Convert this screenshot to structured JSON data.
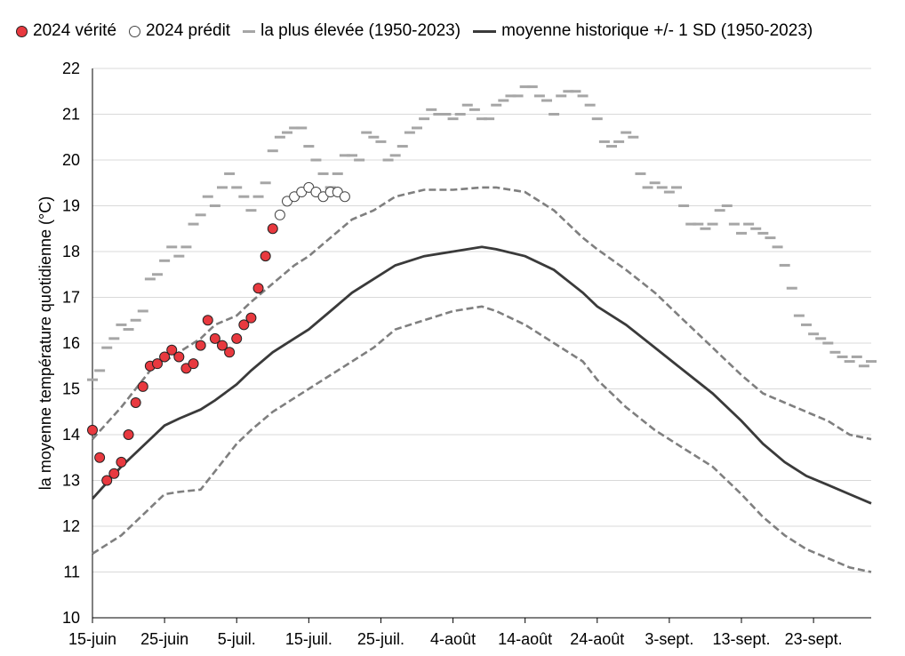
{
  "legend": {
    "truth": "2024 vérité",
    "predicted": "2024 prédit",
    "highest": "la plus élevée (1950-2023)",
    "mean": "moyenne historique +/- 1 SD (1950-2023)"
  },
  "chart_data": {
    "type": "line",
    "title": "",
    "xlabel": "",
    "ylabel": "la moyenne température quotidienne (°C)",
    "ylim": [
      10,
      22
    ],
    "yticks": [
      10,
      11,
      12,
      13,
      14,
      15,
      16,
      17,
      18,
      19,
      20,
      21,
      22
    ],
    "x_tick_labels": [
      "15-juin",
      "25-juin",
      "5-juil.",
      "15-juil.",
      "25-juil.",
      "4-août",
      "14-août",
      "24-août",
      "3-sept.",
      "13-sept.",
      "23-sept."
    ],
    "x_start": "15-juin",
    "x_range_days": [
      0,
      108
    ],
    "grid": "horizontal",
    "legend_position": "top",
    "colors": {
      "truth": "#e8393f",
      "predicted": "#ffffff",
      "highest": "#a6a6a6",
      "mean": "#3a3a3a",
      "sd": "#7f7f7f"
    },
    "series": [
      {
        "name": "2024 vérité",
        "style": "filled-dot",
        "x": [
          0,
          1,
          2,
          3,
          4,
          5,
          6,
          7,
          8,
          9,
          10,
          11,
          12,
          13,
          14,
          15,
          16,
          17,
          18,
          19,
          20,
          21,
          22,
          23,
          24,
          25
        ],
        "values": [
          14.1,
          13.5,
          13.0,
          13.15,
          13.4,
          14.0,
          14.7,
          15.05,
          15.5,
          15.55,
          15.7,
          15.85,
          15.7,
          15.45,
          15.55,
          15.95,
          16.5,
          16.1,
          15.95,
          15.8,
          16.1,
          16.4,
          16.55,
          17.2,
          17.9,
          18.5
        ]
      },
      {
        "name": "2024 prédit",
        "style": "open-dot",
        "x": [
          26,
          27,
          28,
          29,
          30,
          31,
          32,
          33,
          34,
          35
        ],
        "values": [
          18.8,
          19.1,
          19.2,
          19.3,
          19.4,
          19.3,
          19.2,
          19.3,
          19.3,
          19.2
        ]
      },
      {
        "name": "la plus élevée (1950-2023)",
        "style": "dash-marker",
        "x": [
          0,
          1,
          2,
          3,
          4,
          5,
          6,
          7,
          8,
          9,
          10,
          11,
          12,
          13,
          14,
          15,
          16,
          17,
          18,
          19,
          20,
          21,
          22,
          23,
          24,
          25,
          26,
          27,
          28,
          29,
          30,
          31,
          32,
          33,
          34,
          35,
          36,
          37,
          38,
          39,
          40,
          41,
          42,
          43,
          44,
          45,
          46,
          47,
          48,
          49,
          50,
          51,
          52,
          53,
          54,
          55,
          56,
          57,
          58,
          59,
          60,
          61,
          62,
          63,
          64,
          65,
          66,
          67,
          68,
          69,
          70,
          71,
          72,
          73,
          74,
          75,
          76,
          77,
          78,
          79,
          80,
          81,
          82,
          83,
          84,
          85,
          86,
          87,
          88,
          89,
          90,
          91,
          92,
          93,
          94,
          95,
          96,
          97,
          98,
          99,
          100,
          101,
          102,
          103,
          104,
          105,
          106,
          107,
          108
        ],
        "values": [
          15.2,
          15.4,
          15.9,
          16.1,
          16.4,
          16.3,
          16.5,
          16.7,
          17.4,
          17.5,
          17.8,
          18.1,
          17.9,
          18.1,
          18.6,
          18.8,
          19.2,
          19.0,
          19.4,
          19.7,
          19.4,
          19.2,
          18.9,
          19.2,
          19.5,
          20.2,
          20.5,
          20.6,
          20.7,
          20.7,
          20.3,
          20.0,
          19.7,
          19.4,
          19.7,
          20.1,
          20.1,
          20.0,
          20.6,
          20.5,
          20.4,
          20.0,
          20.1,
          20.3,
          20.6,
          20.7,
          20.9,
          21.1,
          21.0,
          21.0,
          20.9,
          21.0,
          21.2,
          21.1,
          20.9,
          20.9,
          21.2,
          21.3,
          21.4,
          21.4,
          21.6,
          21.6,
          21.4,
          21.3,
          21.0,
          21.4,
          21.5,
          21.5,
          21.4,
          21.2,
          20.9,
          20.4,
          20.3,
          20.4,
          20.6,
          20.5,
          19.7,
          19.4,
          19.5,
          19.4,
          19.3,
          19.4,
          19.0,
          18.6,
          18.6,
          18.5,
          18.6,
          18.9,
          19.0,
          18.6,
          18.4,
          18.6,
          18.5,
          18.4,
          18.3,
          18.1,
          17.7,
          17.2,
          16.6,
          16.4,
          16.2,
          16.1,
          16.0,
          15.8,
          15.7,
          15.6,
          15.7,
          15.5,
          15.6
        ]
      },
      {
        "name": "moyenne historique +/- 1 SD (1950-2023)",
        "style": "solid-line",
        "x": [
          0,
          4,
          8,
          10,
          12,
          15,
          17,
          20,
          22,
          25,
          28,
          30,
          33,
          36,
          39,
          42,
          46,
          50,
          54,
          56,
          60,
          64,
          68,
          70,
          74,
          78,
          82,
          86,
          90,
          93,
          96,
          99,
          102,
          105,
          108
        ],
        "values": [
          12.6,
          13.3,
          13.9,
          14.2,
          14.35,
          14.55,
          14.75,
          15.1,
          15.4,
          15.8,
          16.1,
          16.3,
          16.7,
          17.1,
          17.4,
          17.7,
          17.9,
          18.0,
          18.1,
          18.05,
          17.9,
          17.6,
          17.1,
          16.8,
          16.4,
          15.9,
          15.4,
          14.9,
          14.3,
          13.8,
          13.4,
          13.1,
          12.9,
          12.7,
          12.5
        ]
      },
      {
        "name": "+1 SD",
        "style": "dashed-line",
        "x": [
          0,
          4,
          8,
          10,
          12,
          15,
          17,
          20,
          22,
          25,
          28,
          30,
          33,
          36,
          39,
          42,
          46,
          50,
          54,
          56,
          60,
          64,
          68,
          70,
          74,
          78,
          82,
          86,
          90,
          93,
          96,
          99,
          102,
          105,
          108
        ],
        "values": [
          13.9,
          14.6,
          15.4,
          15.6,
          15.8,
          16.1,
          16.4,
          16.6,
          16.9,
          17.3,
          17.7,
          17.9,
          18.3,
          18.7,
          18.9,
          19.2,
          19.35,
          19.35,
          19.4,
          19.4,
          19.3,
          18.9,
          18.3,
          18.05,
          17.6,
          17.1,
          16.5,
          15.9,
          15.3,
          14.9,
          14.7,
          14.5,
          14.3,
          14.0,
          13.9
        ]
      },
      {
        "name": "-1 SD",
        "style": "dashed-line",
        "x": [
          0,
          4,
          8,
          10,
          12,
          15,
          17,
          20,
          22,
          25,
          28,
          30,
          33,
          36,
          39,
          42,
          46,
          50,
          54,
          56,
          60,
          64,
          68,
          70,
          74,
          78,
          82,
          86,
          90,
          93,
          96,
          99,
          102,
          105,
          108
        ],
        "values": [
          11.4,
          11.8,
          12.4,
          12.7,
          12.75,
          12.8,
          13.2,
          13.8,
          14.1,
          14.5,
          14.8,
          15.0,
          15.3,
          15.6,
          15.9,
          16.3,
          16.5,
          16.7,
          16.8,
          16.7,
          16.4,
          16.0,
          15.6,
          15.2,
          14.6,
          14.1,
          13.7,
          13.3,
          12.7,
          12.2,
          11.8,
          11.5,
          11.3,
          11.1,
          11.0
        ]
      }
    ]
  }
}
